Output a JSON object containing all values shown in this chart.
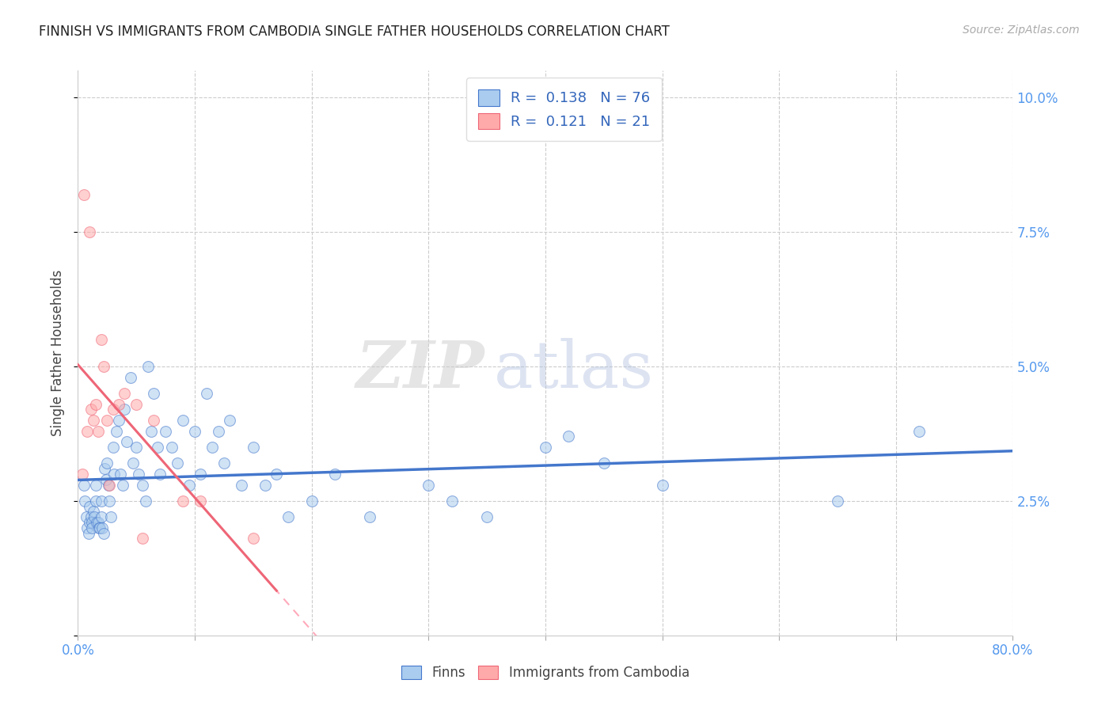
{
  "title": "FINNISH VS IMMIGRANTS FROM CAMBODIA SINGLE FATHER HOUSEHOLDS CORRELATION CHART",
  "source_text": "Source: ZipAtlas.com",
  "ylabel": "Single Father Households",
  "xlim": [
    0.0,
    0.8
  ],
  "ylim": [
    0.0,
    0.105
  ],
  "blue_color": "#AACCEE",
  "pink_color": "#FFAAAA",
  "blue_line_color": "#4477CC",
  "pink_line_color": "#EE6677",
  "pink_dashed_color": "#FFAABB",
  "watermark_zip": "ZIP",
  "watermark_atlas": "atlas",
  "legend1_r": "0.138",
  "legend1_n": "76",
  "legend2_r": "0.121",
  "legend2_n": "21",
  "finns_x": [
    0.005,
    0.006,
    0.007,
    0.008,
    0.009,
    0.01,
    0.01,
    0.011,
    0.012,
    0.012,
    0.013,
    0.014,
    0.015,
    0.015,
    0.016,
    0.017,
    0.018,
    0.019,
    0.02,
    0.02,
    0.021,
    0.022,
    0.023,
    0.024,
    0.025,
    0.026,
    0.027,
    0.028,
    0.03,
    0.031,
    0.033,
    0.035,
    0.036,
    0.038,
    0.04,
    0.042,
    0.045,
    0.047,
    0.05,
    0.052,
    0.055,
    0.058,
    0.06,
    0.063,
    0.065,
    0.068,
    0.07,
    0.075,
    0.08,
    0.085,
    0.09,
    0.095,
    0.1,
    0.105,
    0.11,
    0.115,
    0.12,
    0.125,
    0.13,
    0.14,
    0.15,
    0.16,
    0.17,
    0.18,
    0.2,
    0.22,
    0.25,
    0.3,
    0.32,
    0.35,
    0.4,
    0.42,
    0.45,
    0.5,
    0.65,
    0.72
  ],
  "finns_y": [
    0.028,
    0.025,
    0.022,
    0.02,
    0.019,
    0.021,
    0.024,
    0.022,
    0.021,
    0.02,
    0.023,
    0.022,
    0.028,
    0.025,
    0.021,
    0.021,
    0.02,
    0.02,
    0.025,
    0.022,
    0.02,
    0.019,
    0.031,
    0.029,
    0.032,
    0.028,
    0.025,
    0.022,
    0.035,
    0.03,
    0.038,
    0.04,
    0.03,
    0.028,
    0.042,
    0.036,
    0.048,
    0.032,
    0.035,
    0.03,
    0.028,
    0.025,
    0.05,
    0.038,
    0.045,
    0.035,
    0.03,
    0.038,
    0.035,
    0.032,
    0.04,
    0.028,
    0.038,
    0.03,
    0.045,
    0.035,
    0.038,
    0.032,
    0.04,
    0.028,
    0.035,
    0.028,
    0.03,
    0.022,
    0.025,
    0.03,
    0.022,
    0.028,
    0.025,
    0.022,
    0.035,
    0.037,
    0.032,
    0.028,
    0.025,
    0.038
  ],
  "cambodia_x": [
    0.004,
    0.005,
    0.008,
    0.01,
    0.011,
    0.013,
    0.015,
    0.017,
    0.02,
    0.022,
    0.025,
    0.027,
    0.03,
    0.035,
    0.04,
    0.05,
    0.055,
    0.065,
    0.09,
    0.105,
    0.15
  ],
  "cambodia_y": [
    0.03,
    0.082,
    0.038,
    0.075,
    0.042,
    0.04,
    0.043,
    0.038,
    0.055,
    0.05,
    0.04,
    0.028,
    0.042,
    0.043,
    0.045,
    0.043,
    0.018,
    0.04,
    0.025,
    0.025,
    0.018
  ]
}
